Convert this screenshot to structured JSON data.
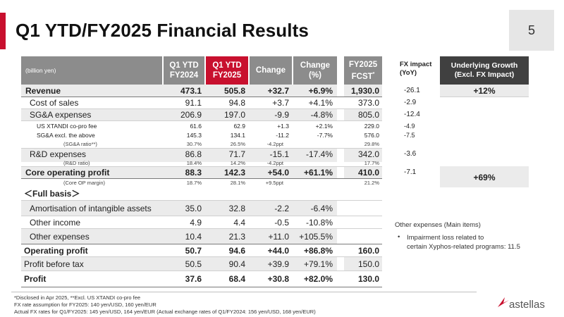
{
  "page": {
    "title": "Q1 YTD/FY2025 Financial Results",
    "number": "5"
  },
  "header": {
    "unit": "(billion yen)",
    "col_q1_2024_l1": "Q1 YTD",
    "col_q1_2024_l2": "FY2024",
    "col_q1_2025_l1": "Q1 YTD",
    "col_q1_2025_l2": "FY2025",
    "col_change": "Change",
    "col_change_pct_l1": "Change",
    "col_change_pct_l2": "(%)",
    "col_fcst_l1": "FY2025",
    "col_fcst_l2": "FCST",
    "col_fcst_mark": "*",
    "col_fx_l1": "FX impact",
    "col_fx_l2": "(YoY)",
    "col_ug_l1": "Underlying Growth",
    "col_ug_l2": "(Excl. FX Impact)"
  },
  "rows": [
    {
      "label": "Revenue",
      "q1_2024": "473.1",
      "q1_2025": "505.8",
      "change": "+32.7",
      "change_pct": "+6.9%",
      "fcst": "1,930.0",
      "fx": "-26.1"
    },
    {
      "label": "Cost of sales",
      "q1_2024": "91.1",
      "q1_2025": "94.8",
      "change": "+3.7",
      "change_pct": "+4.1%",
      "fcst": "373.0",
      "fx": "-2.9"
    },
    {
      "label": "SG&A expenses",
      "q1_2024": "206.9",
      "q1_2025": "197.0",
      "change": "-9.9",
      "change_pct": "-4.8%",
      "fcst": "805.0",
      "fx": "-12.4"
    },
    {
      "label": "US XTANDI co-pro fee",
      "q1_2024": "61.6",
      "q1_2025": "62.9",
      "change": "+1.3",
      "change_pct": "+2.1%",
      "fcst": "229.0",
      "fx": "-4.9"
    },
    {
      "label": "SG&A excl. the above",
      "q1_2024": "145.3",
      "q1_2025": "134.1",
      "change": "-11.2",
      "change_pct": "-7.7%",
      "fcst": "576.0",
      "fx": "-7.5"
    },
    {
      "label": "(SG&A ratio**)",
      "q1_2024": "30.7%",
      "q1_2025": "26.5%",
      "change": "-4.2ppt",
      "change_pct": "",
      "fcst": "29.8%",
      "fx": ""
    },
    {
      "label": "R&D expenses",
      "q1_2024": "86.8",
      "q1_2025": "71.7",
      "change": "-15.1",
      "change_pct": "-17.4%",
      "fcst": "342.0",
      "fx": "-3.6"
    },
    {
      "label": "(R&D ratio)",
      "q1_2024": "18.4%",
      "q1_2025": "14.2%",
      "change": "-4.2ppt",
      "change_pct": "",
      "fcst": "17.7%",
      "fx": ""
    },
    {
      "label": "Core operating profit",
      "q1_2024": "88.3",
      "q1_2025": "142.3",
      "change": "+54.0",
      "change_pct": "+61.1%",
      "fcst": "410.0",
      "fx": "-7.1"
    },
    {
      "label": "(Core OP margin)",
      "q1_2024": "18.7%",
      "q1_2025": "28.1%",
      "change": "+9.5ppt",
      "change_pct": "",
      "fcst": "21.2%",
      "fx": ""
    },
    {
      "label": "Amortisation of intangible assets",
      "q1_2024": "35.0",
      "q1_2025": "32.8",
      "change": "-2.2",
      "change_pct": "-6.4%",
      "fcst": "",
      "fx": ""
    },
    {
      "label": "Other income",
      "q1_2024": "4.9",
      "q1_2025": "4.4",
      "change": "-0.5",
      "change_pct": "-10.8%",
      "fcst": "",
      "fx": ""
    },
    {
      "label": "Other expenses",
      "q1_2024": "10.4",
      "q1_2025": "21.3",
      "change": "+11.0",
      "change_pct": "+105.5%",
      "fcst": "",
      "fx": ""
    },
    {
      "label": "Operating profit",
      "q1_2024": "50.7",
      "q1_2025": "94.6",
      "change": "+44.0",
      "change_pct": "+86.8%",
      "fcst": "160.0",
      "fx": ""
    },
    {
      "label": "Profit before tax",
      "q1_2024": "50.5",
      "q1_2025": "90.4",
      "change": "+39.9",
      "change_pct": "+79.1%",
      "fcst": "150.0",
      "fx": ""
    },
    {
      "label": "Profit",
      "q1_2024": "37.6",
      "q1_2025": "68.4",
      "change": "+30.8",
      "change_pct": "+82.0%",
      "fcst": "130.0",
      "fx": ""
    }
  ],
  "underlying_growth": {
    "revenue": "+12%",
    "core_op": "+69%"
  },
  "section_full_basis": "＜Full basis＞",
  "notes": {
    "title": "Other expenses (Main items)",
    "bullet": "•",
    "line1": "Impairment loss related to",
    "line2": "certain Xyphos-related programs: 11.5"
  },
  "footnotes": [
    "*Disclosed in Apr 2025, **Excl. US XTANDI co-pro fee",
    "FX rate assumption for FY2025: 140 yen/USD, 160 yen/EUR",
    "Actual FX rates for Q1/FY2025: 145 yen/USD, 164 yen/EUR (Actual exchange rates of Q1/FY2024: 156 yen/USD, 168 yen/EUR)"
  ],
  "logo": {
    "text": "astellas"
  },
  "colors": {
    "brand_red": "#c8102e",
    "header_gray": "#8c8c8c",
    "header_dark": "#404040",
    "row_fill": "#ebebeb"
  }
}
